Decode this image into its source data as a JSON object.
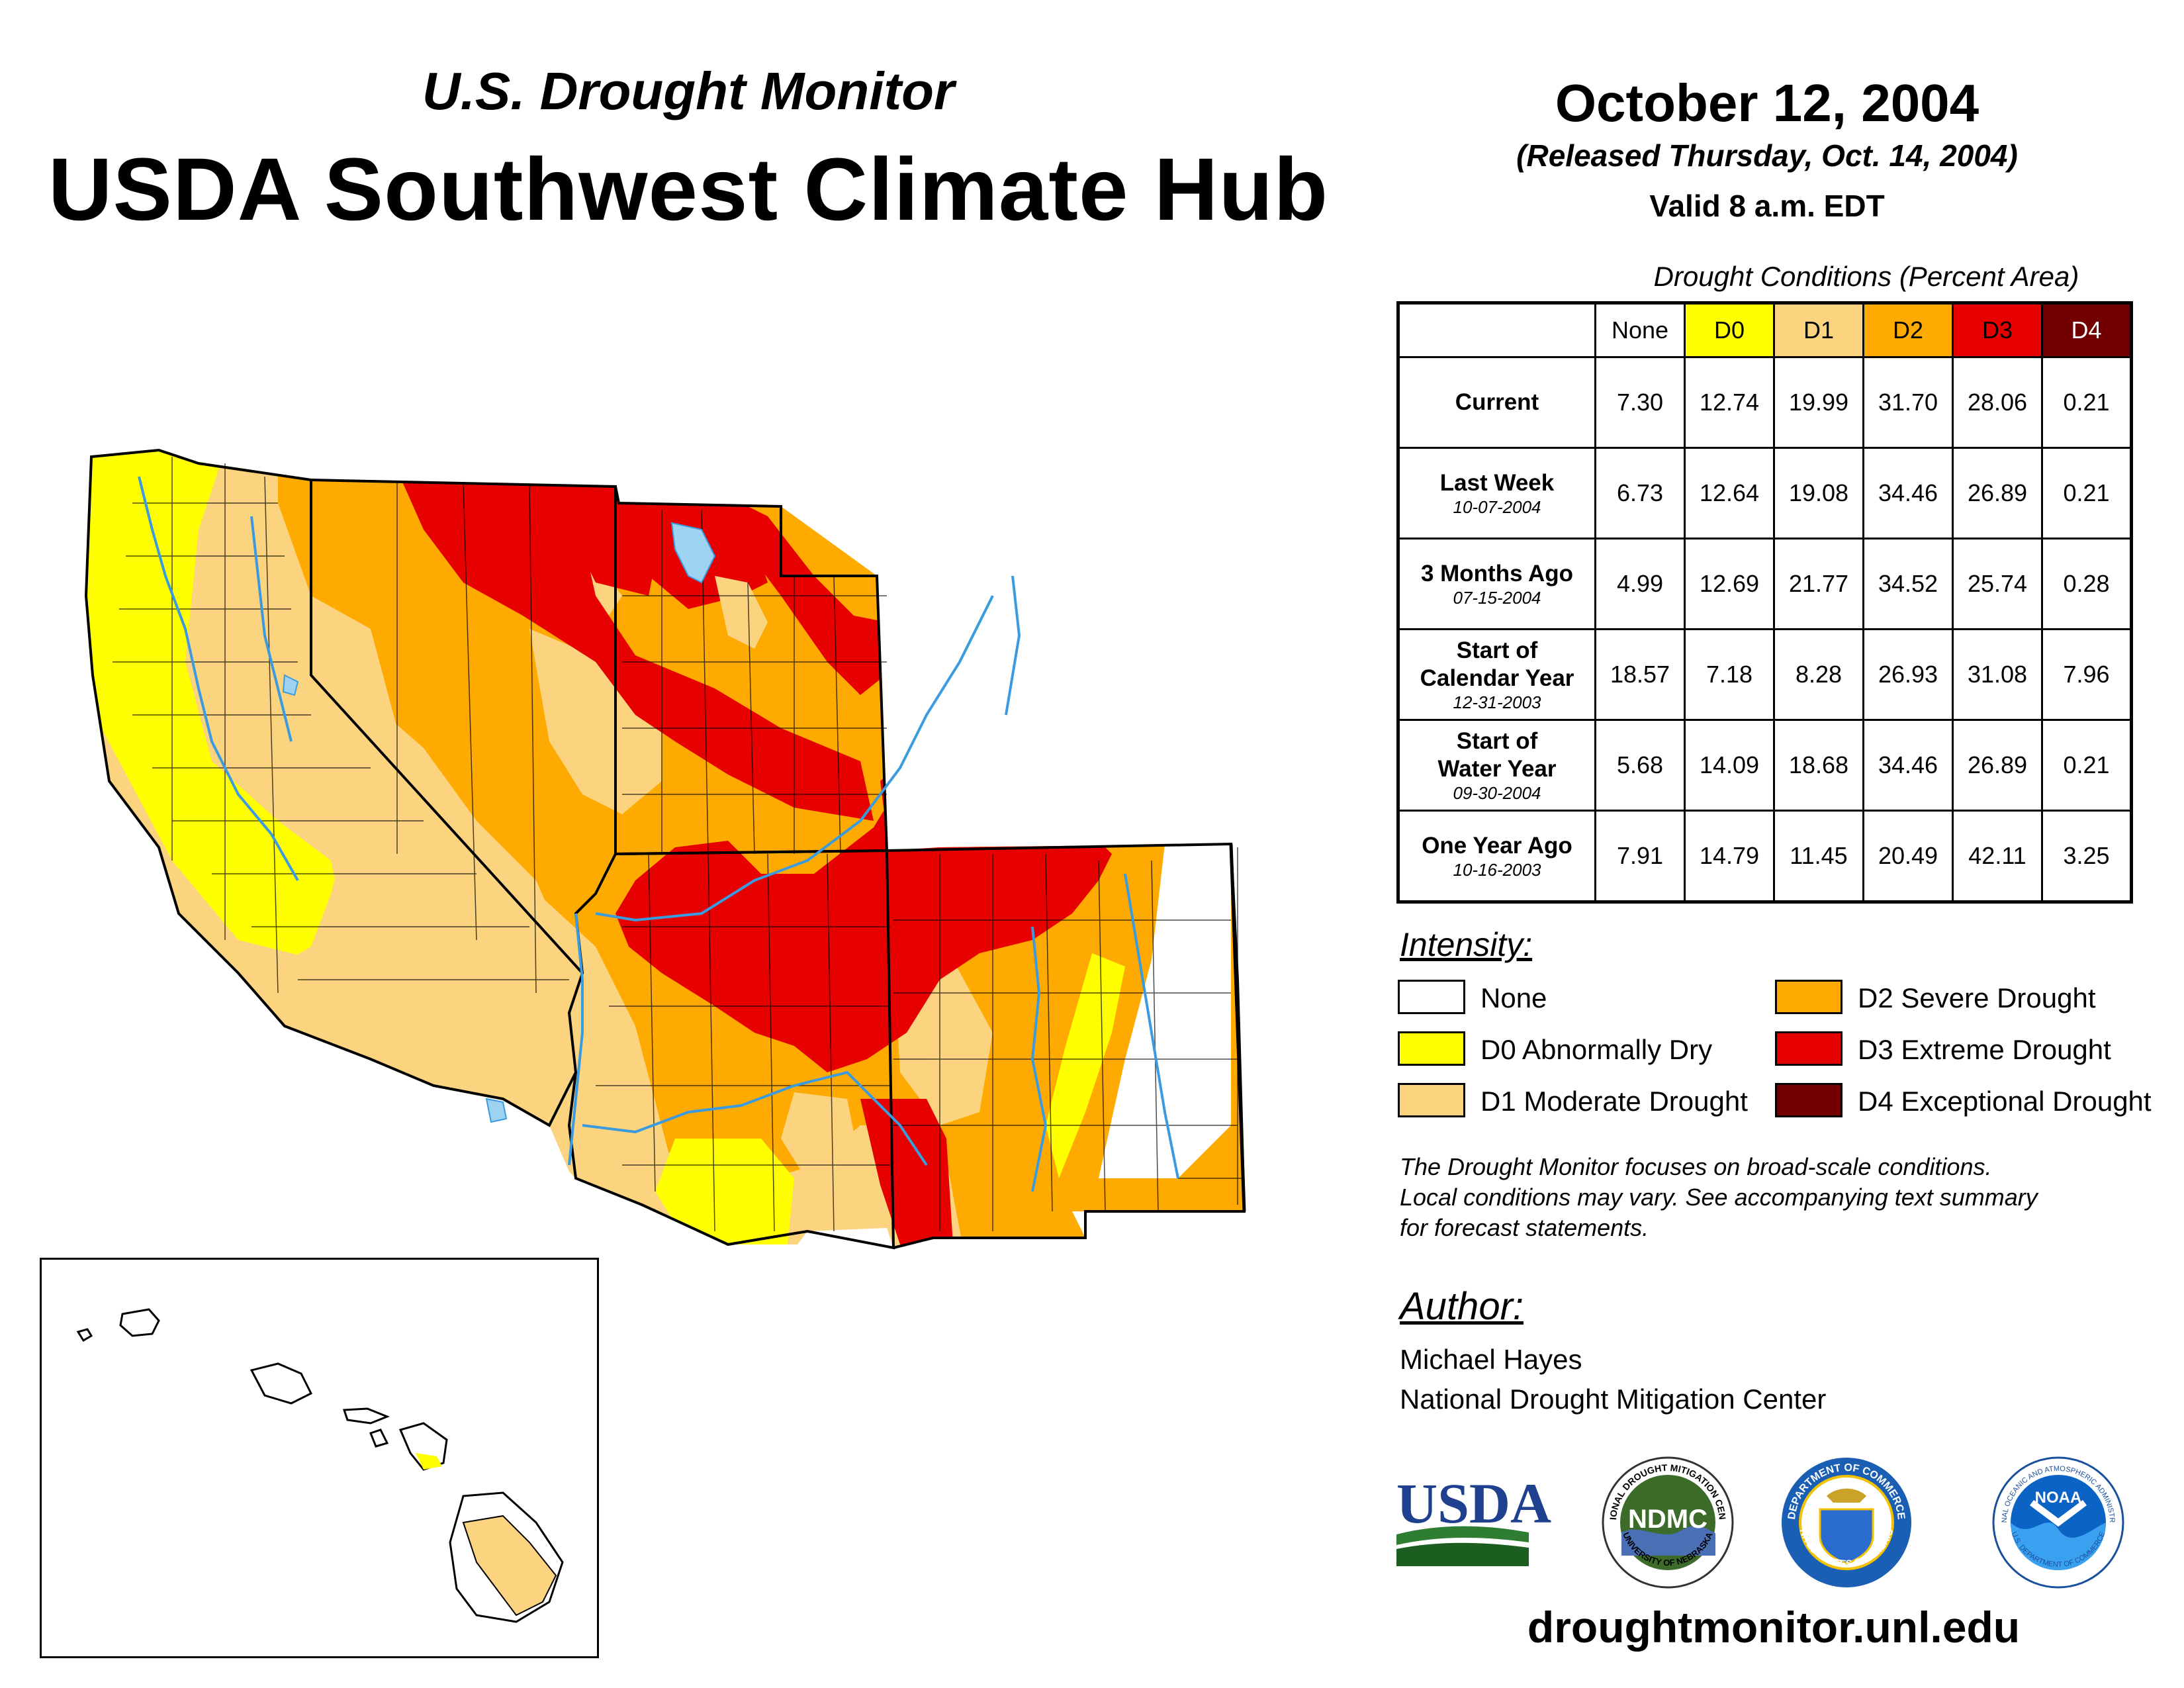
{
  "header": {
    "subtitle": "U.S. Drought Monitor",
    "title": "USDA Southwest Climate Hub",
    "date": "October 12, 2004",
    "released": "(Released Thursday, Oct. 14, 2004)",
    "valid": "Valid 8 a.m. EDT"
  },
  "table": {
    "caption": "Drought Conditions (Percent Area)",
    "columns": [
      {
        "label": "None",
        "color": "#ffffff"
      },
      {
        "label": "D0",
        "color": "#ffff00"
      },
      {
        "label": "D1",
        "color": "#fcd37f"
      },
      {
        "label": "D2",
        "color": "#ffaa00"
      },
      {
        "label": "D3",
        "color": "#e60000"
      },
      {
        "label": "D4",
        "color": "#730000"
      }
    ],
    "rows": [
      {
        "label": "Current",
        "label2": "",
        "date": "",
        "values": [
          "7.30",
          "12.74",
          "19.99",
          "31.70",
          "28.06",
          "0.21"
        ]
      },
      {
        "label": "Last Week",
        "label2": "",
        "date": "10-07-2004",
        "values": [
          "6.73",
          "12.64",
          "19.08",
          "34.46",
          "26.89",
          "0.21"
        ]
      },
      {
        "label": "3 Months Ago",
        "label2": "",
        "date": "07-15-2004",
        "values": [
          "4.99",
          "12.69",
          "21.77",
          "34.52",
          "25.74",
          "0.28"
        ]
      },
      {
        "label": "Start of",
        "label2": "Calendar Year",
        "date": "12-31-2003",
        "values": [
          "18.57",
          "7.18",
          "8.28",
          "26.93",
          "31.08",
          "7.96"
        ]
      },
      {
        "label": "Start of",
        "label2": "Water Year",
        "date": "09-30-2004",
        "values": [
          "5.68",
          "14.09",
          "18.68",
          "34.46",
          "26.89",
          "0.21"
        ]
      },
      {
        "label": "One Year Ago",
        "label2": "",
        "date": "10-16-2003",
        "values": [
          "7.91",
          "14.79",
          "11.45",
          "20.49",
          "42.11",
          "3.25"
        ]
      }
    ]
  },
  "legend": {
    "heading": "Intensity:",
    "items": [
      {
        "label": "None",
        "color": "#ffffff"
      },
      {
        "label": "D0 Abnormally Dry",
        "color": "#ffff00"
      },
      {
        "label": "D1 Moderate Drought",
        "color": "#fcd37f"
      },
      {
        "label": "D2 Severe Drought",
        "color": "#ffaa00"
      },
      {
        "label": "D3 Extreme Drought",
        "color": "#e60000"
      },
      {
        "label": "D4 Exceptional Drought",
        "color": "#730000"
      }
    ]
  },
  "note": {
    "line1": "The Drought Monitor focuses on broad-scale conditions.",
    "line2": "Local conditions may vary. See accompanying text summary",
    "line3": "for forecast statements."
  },
  "author": {
    "heading": "Author:",
    "name": "Michael Hayes",
    "org": "National Drought Mitigation Center"
  },
  "logos": {
    "usda": "USDA",
    "ndmc": "NDMC",
    "ndmc_ring_top": "NATIONAL DROUGHT MITIGATION CENTER",
    "ndmc_ring_bottom": "UNIVERSITY OF NEBRASKA",
    "doc_ring_top": "DEPARTMENT OF COMMERCE",
    "doc_ring_bottom": "UNITED STATES OF AMERICA",
    "noaa": "NOAA",
    "noaa_ring_top": "NATIONAL OCEANIC AND ATMOSPHERIC ADMINISTRATION",
    "noaa_ring_bottom": "U.S. DEPARTMENT OF COMMERCE"
  },
  "website": "droughtmonitor.unl.edu",
  "colors": {
    "none": "#ffffff",
    "d0": "#ffff00",
    "d1": "#fcd37f",
    "d2": "#ffaa00",
    "d3": "#e60000",
    "d4": "#730000",
    "water": "#9dd3f0",
    "river": "#3a9be0"
  }
}
